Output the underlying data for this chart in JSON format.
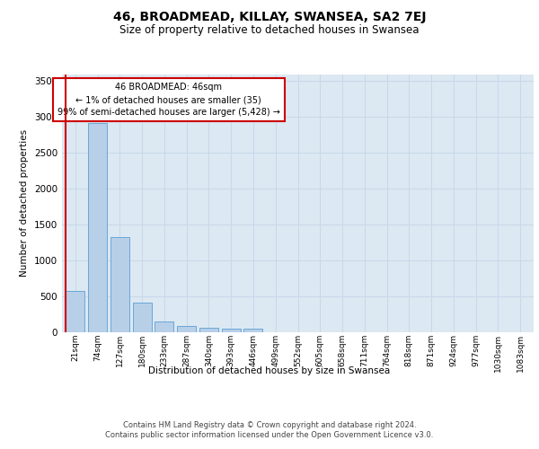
{
  "title": "46, BROADMEAD, KILLAY, SWANSEA, SA2 7EJ",
  "subtitle": "Size of property relative to detached houses in Swansea",
  "xlabel_bottom": "Distribution of detached houses by size in Swansea",
  "ylabel": "Number of detached properties",
  "footer_line1": "Contains HM Land Registry data © Crown copyright and database right 2024.",
  "footer_line2": "Contains public sector information licensed under the Open Government Licence v3.0.",
  "bin_labels": [
    "21sqm",
    "74sqm",
    "127sqm",
    "180sqm",
    "233sqm",
    "287sqm",
    "340sqm",
    "393sqm",
    "446sqm",
    "499sqm",
    "552sqm",
    "605sqm",
    "658sqm",
    "711sqm",
    "764sqm",
    "818sqm",
    "871sqm",
    "924sqm",
    "977sqm",
    "1030sqm",
    "1083sqm"
  ],
  "bar_values": [
    570,
    2920,
    1330,
    410,
    150,
    85,
    60,
    55,
    45,
    0,
    0,
    0,
    0,
    0,
    0,
    0,
    0,
    0,
    0,
    0,
    0
  ],
  "bar_color": "#b8cfe8",
  "bar_edge_color": "#5a9fd4",
  "marker_color": "#cc0000",
  "annotation_line1": "46 BROADMEAD: 46sqm",
  "annotation_line2": "← 1% of detached houses are smaller (35)",
  "annotation_line3": "99% of semi-detached houses are larger (5,428) →",
  "annotation_box_edgecolor": "#cc0000",
  "ylim_max": 3600,
  "yticks": [
    0,
    500,
    1000,
    1500,
    2000,
    2500,
    3000,
    3500
  ],
  "grid_color": "#c8d8ea",
  "bg_color": "#dce8f2",
  "title_fontsize": 10,
  "subtitle_fontsize": 8.5,
  "footer_fontsize": 6
}
